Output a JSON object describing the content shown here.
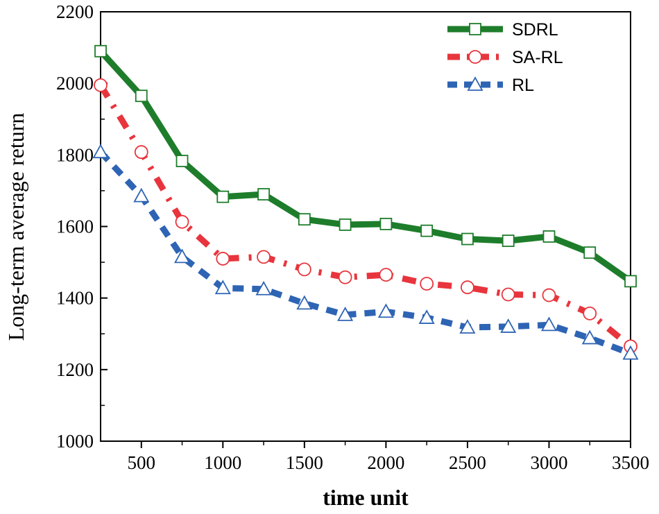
{
  "chart_data": {
    "type": "line",
    "title": "",
    "xlabel": "time unit",
    "ylabel": "Long-term average return",
    "xlim": [
      250,
      3500
    ],
    "ylim": [
      1000,
      2200
    ],
    "xticks": [
      500,
      1000,
      1500,
      2000,
      2500,
      3000,
      3500
    ],
    "xtick_labels": [
      "500",
      "1000",
      "1500",
      "2000",
      "2500",
      "3000",
      "3500"
    ],
    "yticks": [
      1000,
      1200,
      1400,
      1600,
      1800,
      2000,
      2200
    ],
    "ytick_labels": [
      "1000",
      "1200",
      "1400",
      "1600",
      "1800",
      "2000",
      "2200"
    ],
    "grid": false,
    "legend_position": "top-right",
    "x": [
      250,
      500,
      750,
      1000,
      1250,
      1500,
      1750,
      2000,
      2250,
      2500,
      2750,
      3000,
      3250,
      3500
    ],
    "series": [
      {
        "name": "SDRL",
        "color": "#1e7d2b",
        "marker": "square",
        "line_style": "solid",
        "values": [
          2090,
          1965,
          1783,
          1683,
          1690,
          1620,
          1605,
          1607,
          1588,
          1565,
          1560,
          1572,
          1527,
          1447
        ]
      },
      {
        "name": "SA-RL",
        "color": "#e8353d",
        "marker": "circle",
        "line_style": "dash-dot",
        "values": [
          1995,
          1808,
          1613,
          1510,
          1515,
          1480,
          1458,
          1465,
          1440,
          1430,
          1410,
          1408,
          1357,
          1265
        ]
      },
      {
        "name": "RL",
        "color": "#2e64b4",
        "marker": "triangle",
        "line_style": "dashed",
        "values": [
          1808,
          1685,
          1515,
          1428,
          1425,
          1385,
          1353,
          1362,
          1345,
          1318,
          1320,
          1325,
          1288,
          1245
        ]
      }
    ]
  }
}
